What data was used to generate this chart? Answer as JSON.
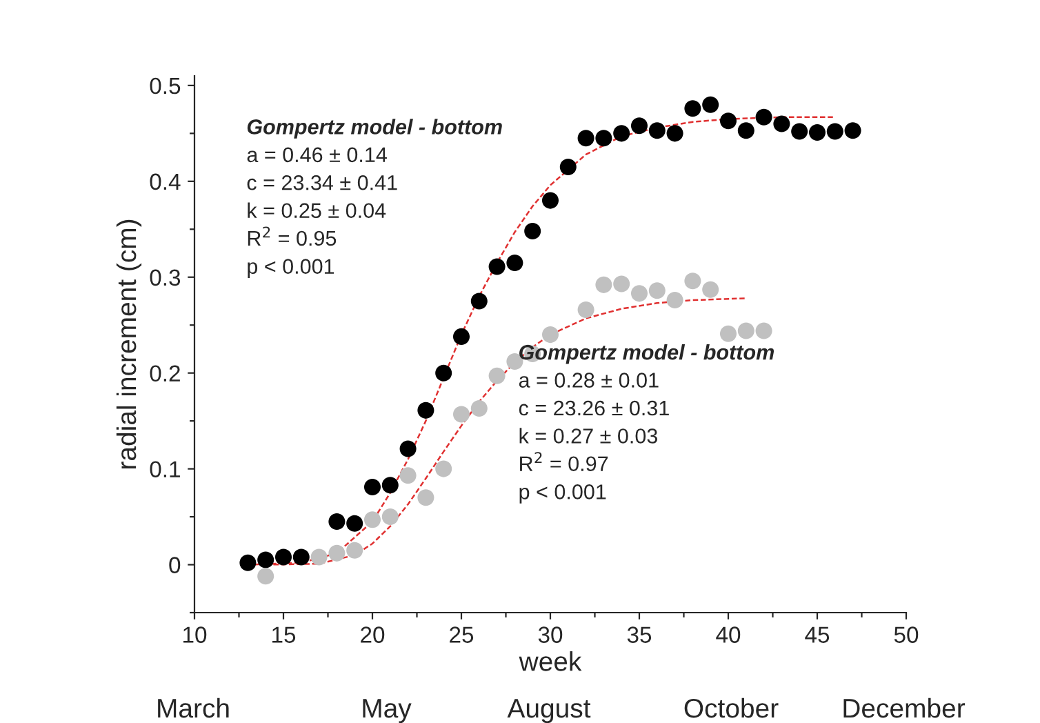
{
  "chart_data": {
    "type": "scatter",
    "xlabel": "week",
    "ylabel": "radial increment (cm)",
    "xlim": [
      10,
      50
    ],
    "ylim": [
      -0.05,
      0.51
    ],
    "xticks": [
      10,
      {
        "value": 12.5,
        "label": null
      },
      15,
      {
        "value": 17.5,
        "label": null
      },
      20,
      {
        "value": 22.5,
        "label": null
      },
      25,
      {
        "value": 27.5,
        "label": null
      },
      30,
      {
        "value": 32.5,
        "label": null
      },
      35,
      {
        "value": 37.5,
        "label": null
      },
      40,
      {
        "value": 42.5,
        "label": null
      },
      45,
      {
        "value": 47.5,
        "label": null
      },
      50
    ],
    "yticks": [
      {
        "value": -0.05,
        "label": null
      },
      0,
      {
        "value": 0.05,
        "label": null
      },
      0.1,
      {
        "value": 0.15,
        "label": null
      },
      0.2,
      {
        "value": 0.25,
        "label": null
      },
      0.3,
      {
        "value": 0.35,
        "label": null
      },
      0.4,
      {
        "value": 0.45,
        "label": null
      },
      0.5
    ],
    "marker": "circle",
    "series": [
      {
        "color": "#000000",
        "x": [
          13,
          14,
          15,
          16,
          18,
          19,
          20,
          21,
          22,
          23,
          24,
          25,
          26,
          27,
          28,
          29,
          30,
          31,
          32,
          33,
          34,
          35,
          36,
          37,
          38,
          39,
          40,
          41,
          42,
          43,
          44,
          45,
          46,
          47
        ],
        "values": [
          0.002,
          0.005,
          0.008,
          0.008,
          0.045,
          0.043,
          0.081,
          0.083,
          0.121,
          0.161,
          0.2,
          0.238,
          0.275,
          0.311,
          0.315,
          0.348,
          0.38,
          0.415,
          0.445,
          0.445,
          0.45,
          0.458,
          0.453,
          0.45,
          0.476,
          0.48,
          0.463,
          0.453,
          0.467,
          0.46,
          0.452,
          0.451,
          0.452,
          0.453
        ]
      },
      {
        "color": "#c0c0c0",
        "x": [
          14,
          17,
          18,
          19,
          20,
          21,
          22,
          23,
          24,
          25,
          26,
          27,
          28,
          29,
          30,
          32,
          33,
          34,
          35,
          36,
          37,
          38,
          39,
          40,
          41,
          42
        ],
        "values": [
          -0.012,
          0.008,
          0.012,
          0.015,
          0.047,
          0.05,
          0.093,
          0.07,
          0.1,
          0.157,
          0.163,
          0.197,
          0.212,
          0.22,
          0.24,
          0.266,
          0.292,
          0.293,
          0.283,
          0.286,
          0.276,
          0.296,
          0.287,
          0.241,
          0.244,
          0.244
        ]
      },
      {
        "type": "line",
        "line_style": "dashed",
        "marker": "none",
        "color": "#e03030",
        "x": [
          13,
          16,
          18,
          20,
          21,
          22,
          23,
          24,
          25,
          26,
          27,
          28,
          29,
          30,
          32,
          34,
          36,
          38,
          40,
          43,
          46
        ],
        "values": [
          0.0,
          0.002,
          0.012,
          0.045,
          0.075,
          0.11,
          0.15,
          0.195,
          0.24,
          0.28,
          0.315,
          0.347,
          0.374,
          0.396,
          0.428,
          0.447,
          0.456,
          0.462,
          0.465,
          0.467,
          0.467
        ]
      },
      {
        "type": "line",
        "line_style": "dashed",
        "marker": "none",
        "color": "#e03030",
        "x": [
          14,
          17,
          19,
          20,
          21,
          22,
          23,
          24,
          25,
          26,
          27,
          28,
          29,
          30,
          32,
          34,
          36,
          38,
          41
        ],
        "values": [
          0.0,
          0.001,
          0.01,
          0.022,
          0.04,
          0.063,
          0.09,
          0.118,
          0.145,
          0.17,
          0.192,
          0.211,
          0.227,
          0.24,
          0.257,
          0.267,
          0.273,
          0.276,
          0.278
        ]
      }
    ],
    "annotations": [
      "Gompertz model - bottom",
      "a = 0.46 ± 0.14",
      "c = 23.34 ± 0.41",
      "k = 0.25 ± 0.04",
      "R$^{2}$ = 0.95",
      "p < 0.001",
      "Gompertz model - bottom",
      "a = 0.28 ± 0.01",
      "c = 23.26 ± 0.31",
      "k = 0.27 ± 0.03",
      "R$^{2}$ = 0.97",
      "p < 0.001",
      "March",
      "May",
      "August",
      "October",
      "December"
    ],
    "grid": false,
    "legend": false
  }
}
